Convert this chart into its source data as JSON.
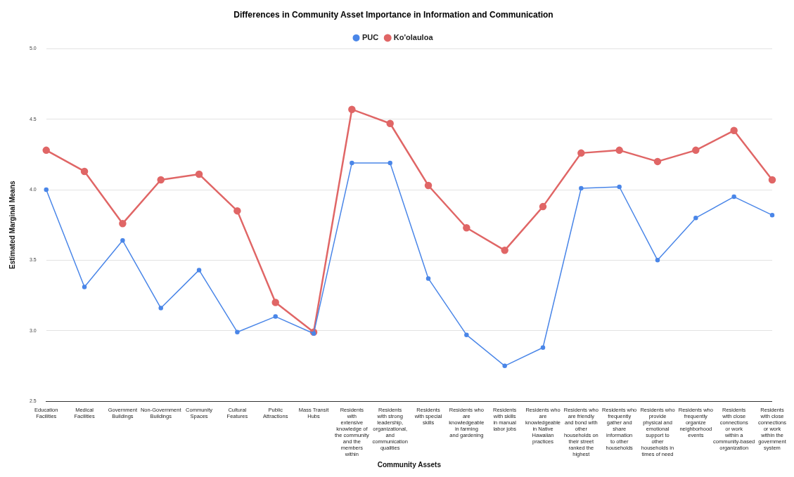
{
  "chart_data": {
    "type": "line",
    "title": "Differences in Community Asset Importance in Information and Communication",
    "xlabel": "Community Assets",
    "ylabel": "Estimated Marginal Means",
    "categories": [
      "Education Facilities",
      "Medical Facilities",
      "Government Buildings",
      "Non-Government Buildings",
      "Community Spaces",
      "Cultural Features",
      "Public Attractions",
      "Mass Transit Hubs",
      "Residents with extensive knowledge of the community and the members within",
      "Residents with strong leadership, organizational, and communication qualities",
      "Residents with special skills",
      "Residents who are knowledgeable in farming and gardening",
      "Residents with skills in manual labor jobs",
      "Residents who are knowledgeable in Native Hawaiian practices",
      "Residents who are friendly and bond with other households on their street ranked the highest",
      "Residents who frequently gather and share information to other households",
      "Residents who provide physical and emotional support to other households in times of need",
      "Residents who frequently organize neighborhood events",
      "Residents with close connections or work within a community-based organization",
      "Residents with close connections or work within the government system"
    ],
    "series": [
      {
        "name": "PUC",
        "color": "#4a86e8",
        "values": [
          4.0,
          3.31,
          3.64,
          3.16,
          3.43,
          2.99,
          3.1,
          2.98,
          4.19,
          4.19,
          3.37,
          2.97,
          2.75,
          2.88,
          4.01,
          4.02,
          3.5,
          3.8,
          3.95,
          3.82
        ]
      },
      {
        "name": "Ko'olauloa",
        "color": "#e06666",
        "values": [
          4.28,
          4.13,
          3.76,
          4.07,
          4.11,
          3.85,
          3.2,
          2.99,
          4.57,
          4.47,
          4.03,
          3.73,
          3.57,
          3.88,
          4.26,
          4.28,
          4.2,
          4.28,
          4.42,
          4.07
        ]
      }
    ],
    "ylim": [
      2.5,
      5.0
    ],
    "yticks": [
      {
        "value": 2.5,
        "label": "2.5"
      },
      {
        "value": 3,
        "label": "3.0"
      },
      {
        "value": 3.5,
        "label": "3.5"
      },
      {
        "value": 4,
        "label": "4.0"
      },
      {
        "value": 4.5,
        "label": "4.5"
      },
      {
        "value": 5,
        "label": "5.0"
      }
    ],
    "grid": "y",
    "legend": "top",
    "marker": "circle",
    "line_style": "solid"
  }
}
